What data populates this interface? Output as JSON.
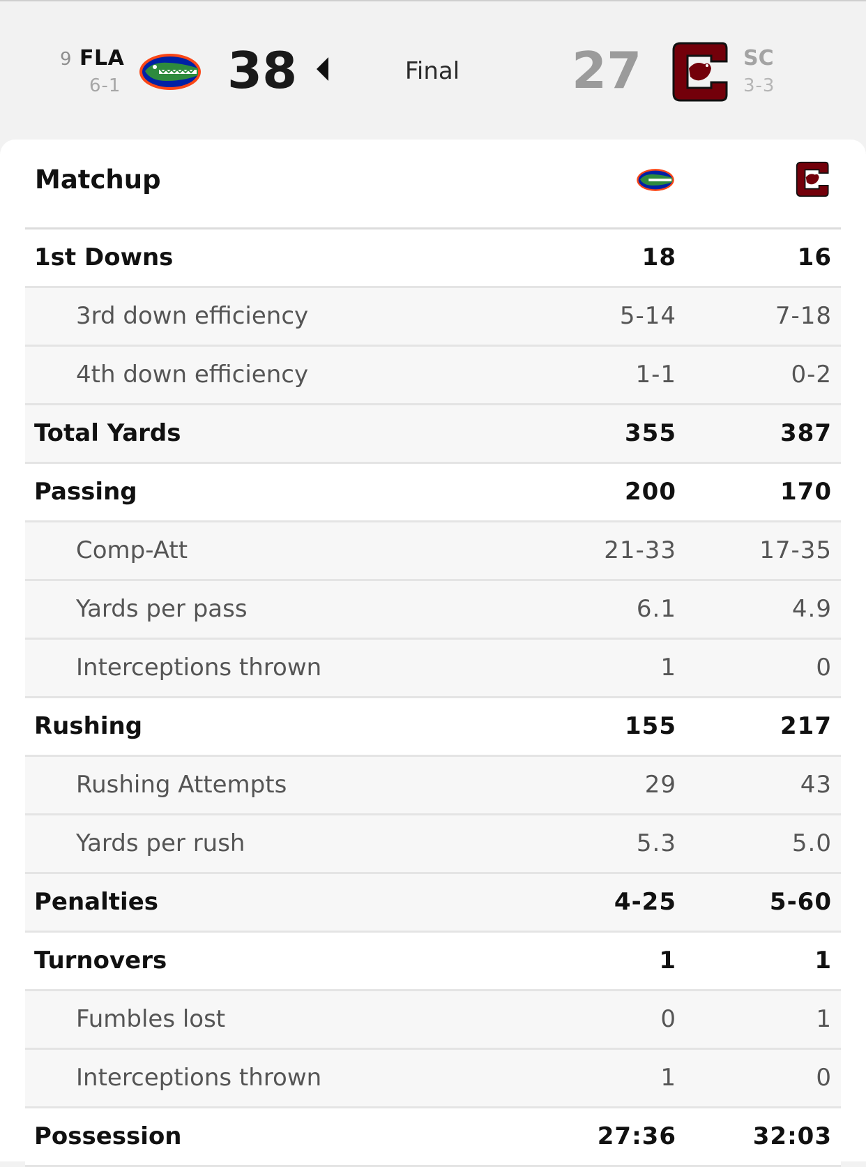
{
  "game": {
    "status": "Final",
    "home": {
      "rank": "9",
      "abbr": "FLA",
      "record": "6-1",
      "score": "38",
      "logo": "gator-logo-icon",
      "color": "#0021a5",
      "accent": "#fa4616"
    },
    "away": {
      "abbr": "SC",
      "record": "3-3",
      "score": "27",
      "logo": "gamecock-logo-icon",
      "color": "#73000a"
    }
  },
  "matchup": {
    "title": "Matchup",
    "rows": [
      {
        "label": "1st Downs",
        "home": "18",
        "away": "16",
        "type": "main"
      },
      {
        "label": "3rd down efficiency",
        "home": "5-14",
        "away": "7-18",
        "type": "sub"
      },
      {
        "label": "4th down efficiency",
        "home": "1-1",
        "away": "0-2",
        "type": "sub"
      },
      {
        "label": "Total Yards",
        "home": "355",
        "away": "387",
        "type": "main"
      },
      {
        "label": "Passing",
        "home": "200",
        "away": "170",
        "type": "main"
      },
      {
        "label": "Comp-Att",
        "home": "21-33",
        "away": "17-35",
        "type": "sub"
      },
      {
        "label": "Yards per pass",
        "home": "6.1",
        "away": "4.9",
        "type": "sub"
      },
      {
        "label": "Interceptions thrown",
        "home": "1",
        "away": "0",
        "type": "sub"
      },
      {
        "label": "Rushing",
        "home": "155",
        "away": "217",
        "type": "main"
      },
      {
        "label": "Rushing Attempts",
        "home": "29",
        "away": "43",
        "type": "sub"
      },
      {
        "label": "Yards per rush",
        "home": "5.3",
        "away": "5.0",
        "type": "sub"
      },
      {
        "label": "Penalties",
        "home": "4-25",
        "away": "5-60",
        "type": "main"
      },
      {
        "label": "Turnovers",
        "home": "1",
        "away": "1",
        "type": "main"
      },
      {
        "label": "Fumbles lost",
        "home": "0",
        "away": "1",
        "type": "sub"
      },
      {
        "label": "Interceptions thrown",
        "home": "1",
        "away": "0",
        "type": "sub"
      },
      {
        "label": "Possession",
        "home": "27:36",
        "away": "32:03",
        "type": "main"
      }
    ]
  }
}
